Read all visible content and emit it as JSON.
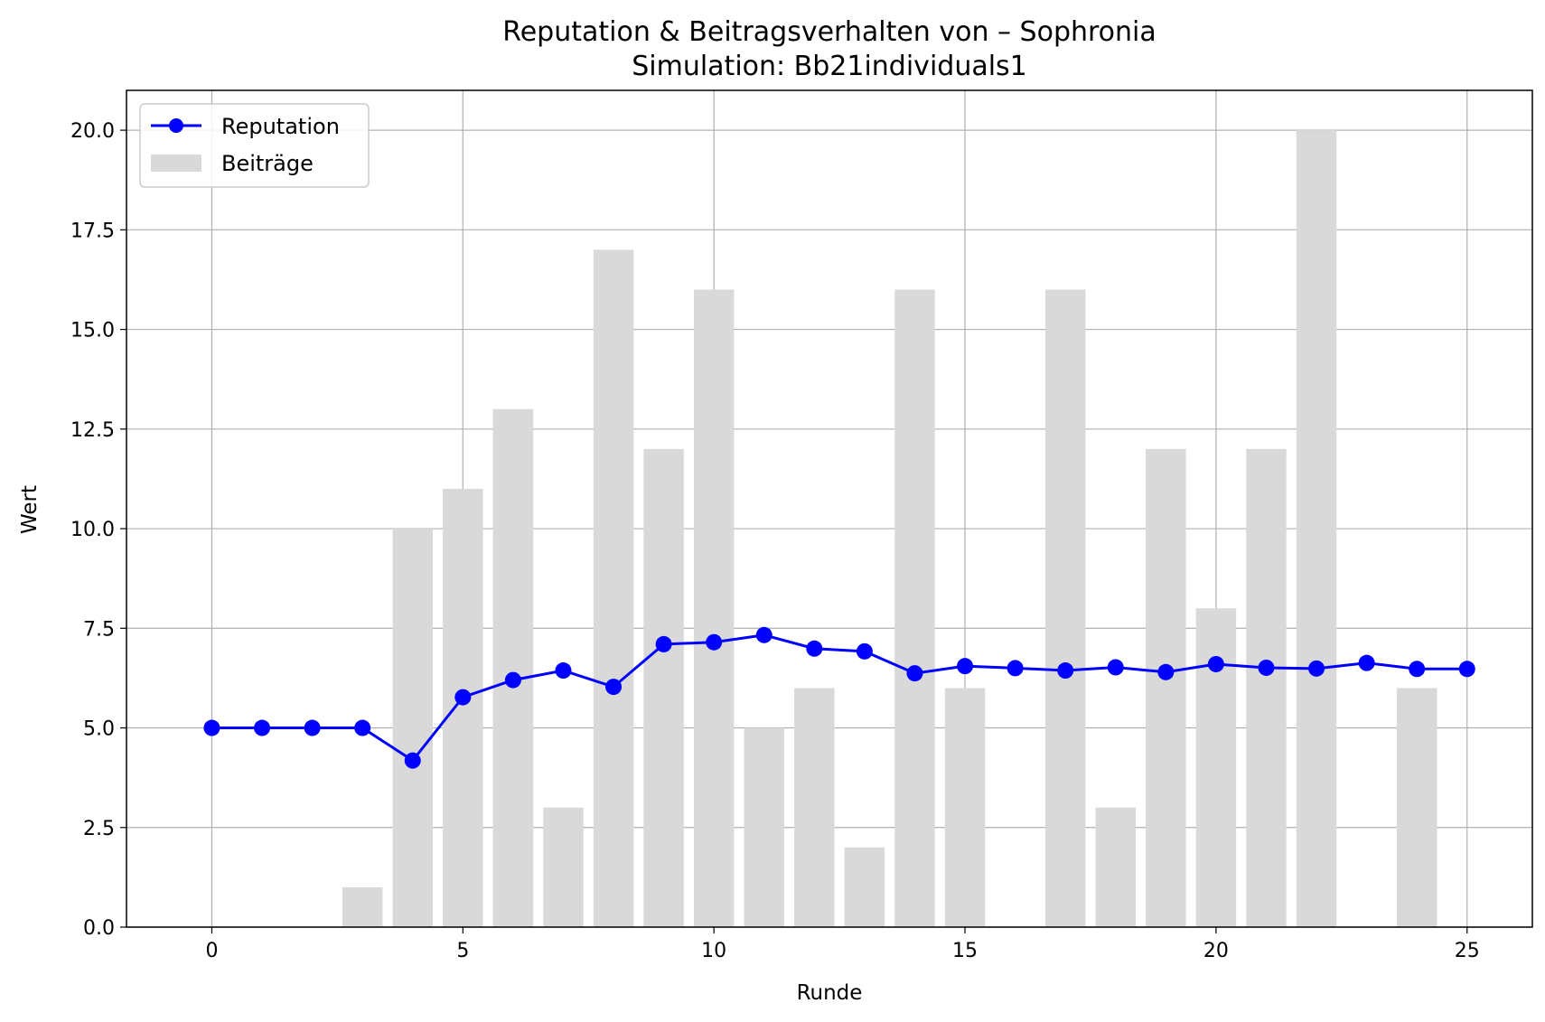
{
  "chart_data": {
    "type": "bar+line",
    "title": "Reputation & Beitragsverhalten von – Sophronia",
    "subtitle": "Simulation: Bb21individuals1",
    "xlabel": "Runde",
    "ylabel": "Wert",
    "xlim": [
      -1.7,
      26.3
    ],
    "ylim": [
      0,
      21
    ],
    "xticks": [
      0,
      5,
      10,
      15,
      20,
      25
    ],
    "yticks": [
      0.0,
      2.5,
      5.0,
      7.5,
      10.0,
      12.5,
      15.0,
      17.5,
      20.0
    ],
    "xtick_labels": [
      "0",
      "5",
      "10",
      "15",
      "20",
      "25"
    ],
    "ytick_labels": [
      "0.0",
      "2.5",
      "5.0",
      "7.5",
      "10.0",
      "12.5",
      "15.0",
      "17.5",
      "20.0"
    ],
    "grid": true,
    "legend_position": "upper-left",
    "series": [
      {
        "name": "Reputation",
        "type": "line",
        "color": "#0000ff",
        "marker": "circle",
        "x": [
          0,
          1,
          2,
          3,
          4,
          5,
          6,
          7,
          8,
          9,
          10,
          11,
          12,
          13,
          14,
          15,
          16,
          17,
          18,
          19,
          20,
          21,
          22,
          23,
          24,
          25
        ],
        "values": [
          5.0,
          5.0,
          5.0,
          5.0,
          4.18,
          5.77,
          6.2,
          6.44,
          6.03,
          7.1,
          7.15,
          7.33,
          6.99,
          6.92,
          6.37,
          6.55,
          6.5,
          6.44,
          6.52,
          6.4,
          6.6,
          6.51,
          6.49,
          6.63,
          6.48,
          6.48
        ]
      },
      {
        "name": "Beiträge",
        "type": "bar",
        "color": "#d9d9d9",
        "x": [
          0,
          1,
          2,
          3,
          4,
          5,
          6,
          7,
          8,
          9,
          10,
          11,
          12,
          13,
          14,
          15,
          16,
          17,
          18,
          19,
          20,
          21,
          22,
          23,
          24,
          25
        ],
        "values": [
          0,
          0,
          0,
          1,
          10,
          11,
          13,
          3,
          17,
          12,
          16,
          5,
          6,
          2,
          16,
          6,
          0,
          16,
          3,
          12,
          8,
          12,
          20,
          0,
          6,
          0
        ]
      }
    ]
  }
}
